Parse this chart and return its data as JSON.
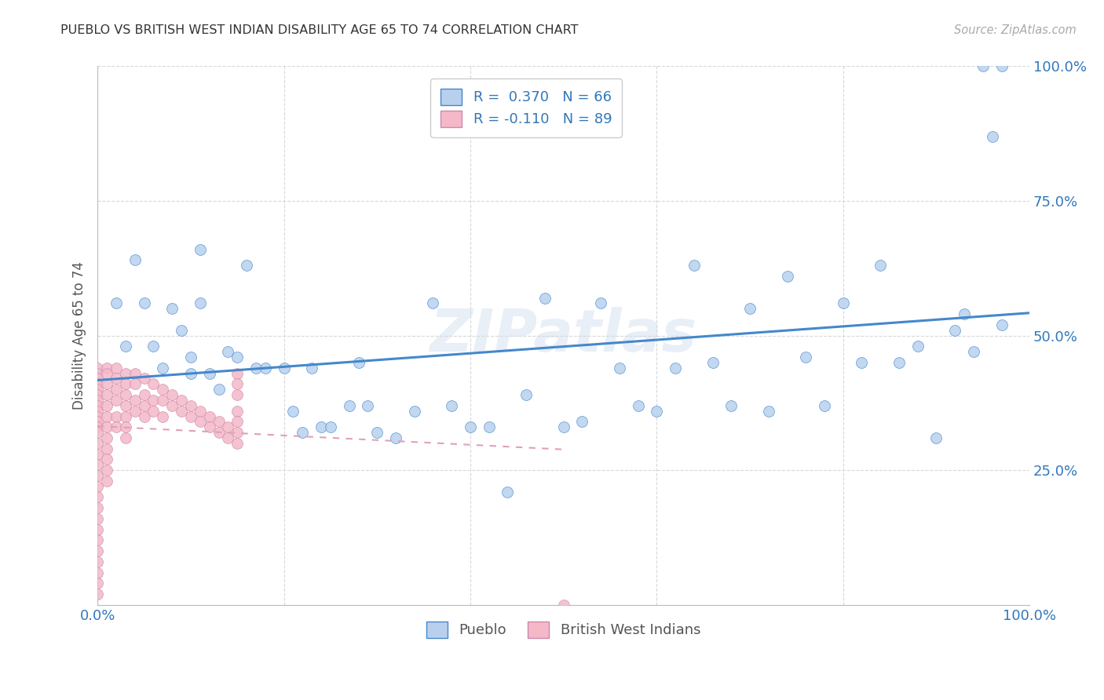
{
  "title": "PUEBLO VS BRITISH WEST INDIAN DISABILITY AGE 65 TO 74 CORRELATION CHART",
  "source": "Source: ZipAtlas.com",
  "ylabel": "Disability Age 65 to 74",
  "xlim": [
    0.0,
    1.0
  ],
  "ylim": [
    0.0,
    1.0
  ],
  "xticks": [
    0.0,
    0.2,
    0.4,
    0.6,
    0.8,
    1.0
  ],
  "yticks": [
    0.0,
    0.25,
    0.5,
    0.75,
    1.0
  ],
  "xticklabels": [
    "0.0%",
    "",
    "",
    "",
    "",
    "100.0%"
  ],
  "yticklabels": [
    "",
    "25.0%",
    "50.0%",
    "75.0%",
    "100.0%"
  ],
  "background_color": "#ffffff",
  "grid_color": "#d8d8d8",
  "pueblo_color": "#b8d0ee",
  "bwi_color": "#f4b8c8",
  "pueblo_line_color": "#4488cc",
  "bwi_line_color": "#e0a0b8",
  "pueblo_R": 0.37,
  "pueblo_N": 66,
  "bwi_R": -0.11,
  "bwi_N": 89,
  "bottom_legend_pueblo": "Pueblo",
  "bottom_legend_bwi": "British West Indians",
  "pueblo_x": [
    0.02,
    0.03,
    0.04,
    0.05,
    0.06,
    0.07,
    0.08,
    0.09,
    0.1,
    0.1,
    0.11,
    0.11,
    0.12,
    0.13,
    0.14,
    0.15,
    0.16,
    0.17,
    0.18,
    0.2,
    0.21,
    0.22,
    0.23,
    0.24,
    0.25,
    0.27,
    0.28,
    0.29,
    0.3,
    0.32,
    0.34,
    0.36,
    0.38,
    0.4,
    0.42,
    0.44,
    0.46,
    0.48,
    0.5,
    0.52,
    0.54,
    0.56,
    0.58,
    0.6,
    0.62,
    0.64,
    0.66,
    0.68,
    0.7,
    0.72,
    0.74,
    0.76,
    0.78,
    0.8,
    0.82,
    0.84,
    0.86,
    0.88,
    0.9,
    0.92,
    0.93,
    0.94,
    0.95,
    0.96,
    0.97,
    0.97
  ],
  "pueblo_y": [
    0.56,
    0.48,
    0.64,
    0.56,
    0.48,
    0.44,
    0.55,
    0.51,
    0.46,
    0.43,
    0.66,
    0.56,
    0.43,
    0.4,
    0.47,
    0.46,
    0.63,
    0.44,
    0.44,
    0.44,
    0.36,
    0.32,
    0.44,
    0.33,
    0.33,
    0.37,
    0.45,
    0.37,
    0.32,
    0.31,
    0.36,
    0.56,
    0.37,
    0.33,
    0.33,
    0.21,
    0.39,
    0.57,
    0.33,
    0.34,
    0.56,
    0.44,
    0.37,
    0.36,
    0.44,
    0.63,
    0.45,
    0.37,
    0.55,
    0.36,
    0.61,
    0.46,
    0.37,
    0.56,
    0.45,
    0.63,
    0.45,
    0.48,
    0.31,
    0.51,
    0.54,
    0.47,
    1.0,
    0.87,
    1.0,
    0.52
  ],
  "bwi_x": [
    0.0,
    0.0,
    0.0,
    0.0,
    0.0,
    0.0,
    0.0,
    0.0,
    0.0,
    0.0,
    0.0,
    0.0,
    0.0,
    0.0,
    0.0,
    0.0,
    0.0,
    0.0,
    0.0,
    0.0,
    0.0,
    0.0,
    0.0,
    0.0,
    0.0,
    0.0,
    0.0,
    0.0,
    0.01,
    0.01,
    0.01,
    0.01,
    0.01,
    0.01,
    0.01,
    0.01,
    0.01,
    0.01,
    0.01,
    0.01,
    0.02,
    0.02,
    0.02,
    0.02,
    0.02,
    0.02,
    0.03,
    0.03,
    0.03,
    0.03,
    0.03,
    0.03,
    0.03,
    0.04,
    0.04,
    0.04,
    0.04,
    0.05,
    0.05,
    0.05,
    0.05,
    0.06,
    0.06,
    0.06,
    0.07,
    0.07,
    0.07,
    0.08,
    0.08,
    0.09,
    0.09,
    0.1,
    0.1,
    0.11,
    0.11,
    0.12,
    0.12,
    0.13,
    0.13,
    0.14,
    0.14,
    0.15,
    0.15,
    0.15,
    0.15,
    0.15,
    0.15,
    0.15,
    0.5
  ],
  "bwi_y": [
    0.44,
    0.43,
    0.42,
    0.41,
    0.4,
    0.39,
    0.38,
    0.37,
    0.36,
    0.35,
    0.34,
    0.33,
    0.32,
    0.3,
    0.28,
    0.26,
    0.24,
    0.22,
    0.2,
    0.18,
    0.16,
    0.14,
    0.12,
    0.1,
    0.08,
    0.06,
    0.04,
    0.02,
    0.44,
    0.43,
    0.41,
    0.39,
    0.37,
    0.35,
    0.33,
    0.31,
    0.29,
    0.27,
    0.25,
    0.23,
    0.44,
    0.42,
    0.4,
    0.38,
    0.35,
    0.33,
    0.43,
    0.41,
    0.39,
    0.37,
    0.35,
    0.33,
    0.31,
    0.43,
    0.41,
    0.38,
    0.36,
    0.42,
    0.39,
    0.37,
    0.35,
    0.41,
    0.38,
    0.36,
    0.4,
    0.38,
    0.35,
    0.39,
    0.37,
    0.38,
    0.36,
    0.37,
    0.35,
    0.36,
    0.34,
    0.35,
    0.33,
    0.34,
    0.32,
    0.33,
    0.31,
    0.43,
    0.41,
    0.39,
    0.36,
    0.34,
    0.32,
    0.3,
    0.0
  ],
  "bwi_trend_x": [
    0.0,
    0.5
  ],
  "bwi_trend_y": [
    0.42,
    0.28
  ]
}
